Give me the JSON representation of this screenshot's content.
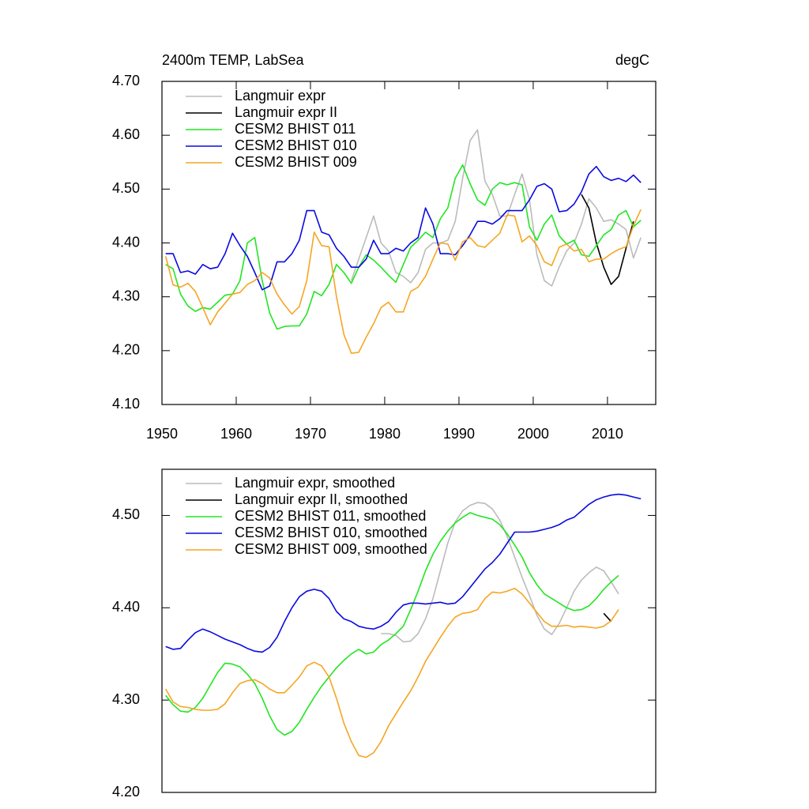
{
  "chart_data": [
    {
      "type": "line",
      "title": "2400m TEMP, LabSea",
      "units": "degC",
      "x": [
        1950.5,
        1951.5,
        1952.5,
        1953.5,
        1954.5,
        1955.5,
        1956.5,
        1957.5,
        1958.5,
        1959.5,
        1960.5,
        1961.5,
        1962.5,
        1963.5,
        1964.5,
        1965.5,
        1966.5,
        1967.5,
        1968.5,
        1969.5,
        1970.5,
        1971.5,
        1972.5,
        1973.5,
        1974.5,
        1975.5,
        1976.5,
        1977.5,
        1978.5,
        1979.5,
        1980.5,
        1981.5,
        1982.5,
        1983.5,
        1984.5,
        1985.5,
        1986.5,
        1987.5,
        1988.5,
        1989.5,
        1990.5,
        1991.5,
        1992.5,
        1993.5,
        1994.5,
        1995.5,
        1996.5,
        1997.5,
        1998.5,
        1999.5,
        2000.5,
        2001.5,
        2002.5,
        2003.5,
        2004.5,
        2005.5,
        2006.5,
        2007.5,
        2008.5,
        2009.5,
        2010.5,
        2011.5,
        2012.5,
        2013.5,
        2014.5
      ],
      "xlim": [
        1950,
        2016.5
      ],
      "xticks": [
        1950,
        1960,
        1970,
        1980,
        1990,
        2000,
        2010
      ],
      "ylim": [
        4.1,
        4.7
      ],
      "yticks": [
        {
          "value": 4.1,
          "label": "4.10"
        },
        {
          "value": 4.2,
          "label": "4.20"
        },
        {
          "value": 4.3,
          "label": "4.30"
        },
        {
          "value": 4.4,
          "label": "4.40"
        },
        {
          "value": 4.5,
          "label": "4.50"
        },
        {
          "value": 4.6,
          "label": "4.60"
        },
        {
          "value": 4.7,
          "label": "4.70"
        }
      ],
      "series": [
        {
          "name": "Langmuir expr",
          "color": "#bbbbbb",
          "values": [
            null,
            null,
            null,
            null,
            null,
            null,
            null,
            null,
            null,
            null,
            null,
            null,
            null,
            null,
            null,
            null,
            null,
            null,
            null,
            null,
            null,
            null,
            null,
            null,
            null,
            4.33,
            4.37,
            4.41,
            4.45,
            4.4,
            4.385,
            4.345,
            4.338,
            4.326,
            4.345,
            4.388,
            4.4,
            4.4,
            4.405,
            4.44,
            4.52,
            4.59,
            4.61,
            4.515,
            4.49,
            4.45,
            4.45,
            4.49,
            4.528,
            4.48,
            4.378,
            4.33,
            4.32,
            4.355,
            4.385,
            4.4,
            4.435,
            4.482,
            4.465,
            4.44,
            4.443,
            4.435,
            4.425,
            4.372,
            4.41
          ]
        },
        {
          "name": "Langmuir expr II",
          "color": "#000000",
          "values": [
            null,
            null,
            null,
            null,
            null,
            null,
            null,
            null,
            null,
            null,
            null,
            null,
            null,
            null,
            null,
            null,
            null,
            null,
            null,
            null,
            null,
            null,
            null,
            null,
            null,
            null,
            null,
            null,
            null,
            null,
            null,
            null,
            null,
            null,
            null,
            null,
            null,
            null,
            null,
            null,
            null,
            null,
            null,
            null,
            null,
            null,
            null,
            null,
            null,
            null,
            null,
            null,
            null,
            null,
            null,
            null,
            4.49,
            4.465,
            4.4,
            4.355,
            4.323,
            4.338,
            4.39,
            4.44,
            null
          ]
        },
        {
          "name": "CESM2 BHIST 011",
          "color": "#22e622",
          "values": [
            4.36,
            4.352,
            4.305,
            4.283,
            4.273,
            4.28,
            4.277,
            4.29,
            4.303,
            4.305,
            4.33,
            4.4,
            4.41,
            4.33,
            4.27,
            4.24,
            4.245,
            4.246,
            4.246,
            4.268,
            4.31,
            4.302,
            4.323,
            4.36,
            4.345,
            4.325,
            4.355,
            4.378,
            4.368,
            4.355,
            4.34,
            4.327,
            4.36,
            4.392,
            4.405,
            4.42,
            4.41,
            4.445,
            4.465,
            4.52,
            4.545,
            4.51,
            4.48,
            4.47,
            4.5,
            4.512,
            4.508,
            4.512,
            4.508,
            4.43,
            4.405,
            4.435,
            4.452,
            4.413,
            4.398,
            4.405,
            4.378,
            4.375,
            4.395,
            4.415,
            4.425,
            4.452,
            4.46,
            4.43,
            4.442
          ]
        },
        {
          "name": "CESM2 BHIST 010",
          "color": "#0a0ae0",
          "values": [
            4.38,
            4.38,
            4.345,
            4.348,
            4.342,
            4.36,
            4.352,
            4.355,
            4.38,
            4.418,
            4.395,
            4.375,
            4.345,
            4.313,
            4.32,
            4.365,
            4.365,
            4.38,
            4.405,
            4.46,
            4.46,
            4.42,
            4.415,
            4.39,
            4.375,
            4.355,
            4.355,
            4.37,
            4.405,
            4.38,
            4.38,
            4.39,
            4.385,
            4.4,
            4.41,
            4.465,
            4.435,
            4.38,
            4.38,
            4.378,
            4.395,
            4.415,
            4.44,
            4.44,
            4.435,
            4.445,
            4.46,
            4.46,
            4.46,
            4.48,
            4.505,
            4.51,
            4.5,
            4.458,
            4.46,
            4.472,
            4.495,
            4.528,
            4.542,
            4.523,
            4.516,
            4.52,
            4.514,
            4.526,
            4.512
          ]
        },
        {
          "name": "CESM2 BHIST 009",
          "color": "#f5a623",
          "values": [
            4.375,
            4.322,
            4.318,
            4.325,
            4.31,
            4.28,
            4.248,
            4.272,
            4.288,
            4.305,
            4.308,
            4.323,
            4.33,
            4.345,
            4.335,
            4.305,
            4.285,
            4.268,
            4.282,
            4.33,
            4.42,
            4.395,
            4.393,
            4.3,
            4.23,
            4.195,
            4.197,
            4.225,
            4.25,
            4.28,
            4.29,
            4.272,
            4.272,
            4.31,
            4.318,
            4.338,
            4.37,
            4.4,
            4.398,
            4.368,
            4.402,
            4.41,
            4.395,
            4.392,
            4.405,
            4.418,
            4.452,
            4.45,
            4.402,
            4.413,
            4.395,
            4.365,
            4.358,
            4.392,
            4.398,
            4.385,
            4.388,
            4.365,
            4.37,
            4.37,
            4.38,
            4.388,
            4.393,
            4.432,
            4.462
          ]
        }
      ]
    },
    {
      "type": "line",
      "x": [
        1950.5,
        1951.5,
        1952.5,
        1953.5,
        1954.5,
        1955.5,
        1956.5,
        1957.5,
        1958.5,
        1959.5,
        1960.5,
        1961.5,
        1962.5,
        1963.5,
        1964.5,
        1965.5,
        1966.5,
        1967.5,
        1968.5,
        1969.5,
        1970.5,
        1971.5,
        1972.5,
        1973.5,
        1974.5,
        1975.5,
        1976.5,
        1977.5,
        1978.5,
        1979.5,
        1980.5,
        1981.5,
        1982.5,
        1983.5,
        1984.5,
        1985.5,
        1986.5,
        1987.5,
        1988.5,
        1989.5,
        1990.5,
        1991.5,
        1992.5,
        1993.5,
        1994.5,
        1995.5,
        1996.5,
        1997.5,
        1998.5,
        1999.5,
        2000.5,
        2001.5,
        2002.5,
        2003.5,
        2004.5,
        2005.5,
        2006.5,
        2007.5,
        2008.5,
        2009.5,
        2010.5,
        2011.5,
        2012.5,
        2013.5,
        2014.5
      ],
      "xlim": [
        1950,
        2016.5
      ],
      "ylim": [
        4.2,
        4.55
      ],
      "yticks": [
        {
          "value": 4.2,
          "label": "4.20"
        },
        {
          "value": 4.3,
          "label": "4.30"
        },
        {
          "value": 4.4,
          "label": "4.40"
        },
        {
          "value": 4.5,
          "label": "4.50"
        }
      ],
      "series": [
        {
          "name": "Langmuir expr, smoothed",
          "color": "#bbbbbb",
          "values": [
            null,
            null,
            null,
            null,
            null,
            null,
            null,
            null,
            null,
            null,
            null,
            null,
            null,
            null,
            null,
            null,
            null,
            null,
            null,
            null,
            null,
            null,
            null,
            null,
            null,
            null,
            null,
            null,
            null,
            4.372,
            4.372,
            4.37,
            4.363,
            4.364,
            4.372,
            4.388,
            4.41,
            4.44,
            4.47,
            4.493,
            4.505,
            4.511,
            4.514,
            4.513,
            4.507,
            4.495,
            4.477,
            4.455,
            4.433,
            4.413,
            4.392,
            4.377,
            4.371,
            4.383,
            4.4,
            4.418,
            4.43,
            4.438,
            4.444,
            4.44,
            4.428,
            4.415,
            null,
            null,
            null
          ]
        },
        {
          "name": "Langmuir expr II, smoothed",
          "color": "#000000",
          "values": [
            null,
            null,
            null,
            null,
            null,
            null,
            null,
            null,
            null,
            null,
            null,
            null,
            null,
            null,
            null,
            null,
            null,
            null,
            null,
            null,
            null,
            null,
            null,
            null,
            null,
            null,
            null,
            null,
            null,
            null,
            null,
            null,
            null,
            null,
            null,
            null,
            null,
            null,
            null,
            null,
            null,
            null,
            null,
            null,
            null,
            null,
            null,
            null,
            null,
            null,
            null,
            null,
            null,
            null,
            null,
            null,
            null,
            null,
            null,
            4.394,
            4.385,
            null,
            null,
            null,
            null
          ]
        },
        {
          "name": "CESM2 BHIST 011, smoothed",
          "color": "#22e622",
          "values": [
            4.305,
            4.295,
            4.288,
            4.287,
            4.292,
            4.302,
            4.316,
            4.33,
            4.34,
            4.339,
            4.336,
            4.328,
            4.318,
            4.302,
            4.283,
            4.268,
            4.262,
            4.266,
            4.276,
            4.29,
            4.303,
            4.315,
            4.325,
            4.335,
            4.343,
            4.35,
            4.355,
            4.35,
            4.352,
            4.36,
            4.365,
            4.372,
            4.38,
            4.398,
            4.418,
            4.44,
            4.458,
            4.472,
            4.483,
            4.492,
            4.498,
            4.503,
            4.5,
            4.498,
            4.496,
            4.49,
            4.48,
            4.468,
            4.455,
            4.438,
            4.425,
            4.415,
            4.41,
            4.405,
            4.4,
            4.397,
            4.398,
            4.402,
            4.41,
            4.42,
            4.428,
            4.435,
            null,
            null,
            null
          ]
        },
        {
          "name": "CESM2 BHIST 010, smoothed",
          "color": "#0a0ae0",
          "values": [
            4.358,
            4.355,
            4.356,
            4.365,
            4.373,
            4.377,
            4.374,
            4.37,
            4.366,
            4.363,
            4.36,
            4.356,
            4.353,
            4.352,
            4.357,
            4.368,
            4.385,
            4.4,
            4.412,
            4.418,
            4.42,
            4.418,
            4.41,
            4.396,
            4.388,
            4.385,
            4.38,
            4.378,
            4.377,
            4.38,
            4.385,
            4.395,
            4.403,
            4.405,
            4.405,
            4.404,
            4.405,
            4.406,
            4.404,
            4.405,
            4.412,
            4.422,
            4.432,
            4.442,
            4.449,
            4.458,
            4.47,
            4.482,
            4.482,
            4.482,
            4.483,
            4.485,
            4.487,
            4.49,
            4.495,
            4.498,
            4.505,
            4.512,
            4.517,
            4.52,
            4.522,
            4.523,
            4.522,
            4.52,
            4.518
          ]
        },
        {
          "name": "CESM2 BHIST 009, smoothed",
          "color": "#f5a623",
          "values": [
            4.312,
            4.298,
            4.293,
            4.292,
            4.29,
            4.289,
            4.289,
            4.29,
            4.296,
            4.308,
            4.318,
            4.321,
            4.322,
            4.318,
            4.312,
            4.308,
            4.308,
            4.316,
            4.325,
            4.337,
            4.341,
            4.337,
            4.325,
            4.302,
            4.275,
            4.255,
            4.24,
            4.238,
            4.243,
            4.255,
            4.272,
            4.285,
            4.298,
            4.31,
            4.325,
            4.342,
            4.355,
            4.368,
            4.38,
            4.39,
            4.394,
            4.395,
            4.398,
            4.41,
            4.417,
            4.416,
            4.418,
            4.421,
            4.415,
            4.405,
            4.395,
            4.385,
            4.38,
            4.38,
            4.381,
            4.379,
            4.38,
            4.379,
            4.378,
            4.38,
            4.386,
            4.398,
            null,
            null,
            null
          ]
        }
      ]
    }
  ]
}
